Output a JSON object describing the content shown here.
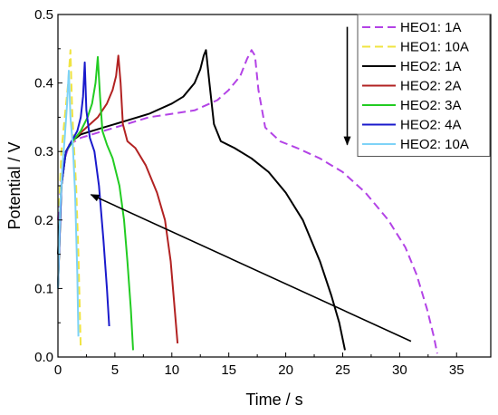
{
  "chart_data": {
    "type": "line",
    "title": "",
    "xlabel": "Time / s",
    "ylabel": "Potential / V",
    "xlim": [
      0,
      38
    ],
    "ylim": [
      0,
      0.5
    ],
    "xticks": [
      0,
      5,
      10,
      15,
      20,
      25,
      30,
      35
    ],
    "yticks": [
      0.0,
      0.1,
      0.2,
      0.3,
      0.4,
      0.5
    ],
    "xtick_labels": [
      "0",
      "5",
      "10",
      "15",
      "20",
      "25",
      "30",
      "35"
    ],
    "ytick_labels": [
      "0.0",
      "0.1",
      "0.2",
      "0.3",
      "0.4",
      "0.5"
    ],
    "grid": false,
    "legend_position": "top-right",
    "series": [
      {
        "name": "HEO1: 1A",
        "color": "#b343e6",
        "dash": "dashed",
        "x": [
          0,
          0.4,
          1,
          2,
          4,
          6,
          8,
          10,
          12,
          14,
          15,
          16,
          16.6,
          17,
          17.3,
          17.6,
          18.2,
          19.5,
          21,
          23,
          25,
          27,
          29,
          30.5,
          31.5,
          32.4,
          33,
          33.3
        ],
        "y": [
          0.2,
          0.28,
          0.31,
          0.32,
          0.33,
          0.34,
          0.35,
          0.355,
          0.36,
          0.375,
          0.39,
          0.41,
          0.435,
          0.448,
          0.44,
          0.39,
          0.335,
          0.315,
          0.305,
          0.29,
          0.27,
          0.24,
          0.2,
          0.16,
          0.12,
          0.07,
          0.03,
          0.005
        ]
      },
      {
        "name": "HEO1: 10A",
        "color": "#f0e442",
        "dash": "dashed",
        "x": [
          0.1,
          0.3,
          0.6,
          0.9,
          1.1,
          1.25,
          1.4,
          1.6,
          1.8,
          2.0
        ],
        "y": [
          0.22,
          0.3,
          0.35,
          0.4,
          0.448,
          0.36,
          0.31,
          0.25,
          0.15,
          0.01
        ]
      },
      {
        "name": "HEO2: 1A",
        "color": "#000000",
        "dash": "solid",
        "x": [
          0,
          0.3,
          0.7,
          1.2,
          2,
          4,
          6,
          8,
          10,
          11,
          12,
          12.5,
          12.8,
          13,
          13.3,
          13.7,
          14.3,
          15.5,
          17,
          18.5,
          20,
          21.5,
          23,
          24,
          24.7,
          25.2
        ],
        "y": [
          0.15,
          0.25,
          0.3,
          0.315,
          0.325,
          0.335,
          0.345,
          0.355,
          0.37,
          0.38,
          0.4,
          0.42,
          0.44,
          0.448,
          0.4,
          0.34,
          0.315,
          0.305,
          0.29,
          0.27,
          0.24,
          0.2,
          0.14,
          0.09,
          0.05,
          0.01
        ]
      },
      {
        "name": "HEO2: 2A",
        "color": "#b22222",
        "dash": "solid",
        "x": [
          0,
          0.3,
          0.7,
          1.5,
          2.5,
          3.5,
          4.3,
          4.8,
          5.1,
          5.3,
          5.5,
          5.7,
          6.1,
          6.8,
          7.7,
          8.7,
          9.4,
          9.9,
          10.2,
          10.5
        ],
        "y": [
          0.1,
          0.25,
          0.3,
          0.32,
          0.335,
          0.35,
          0.37,
          0.39,
          0.41,
          0.44,
          0.4,
          0.34,
          0.315,
          0.305,
          0.28,
          0.24,
          0.2,
          0.14,
          0.08,
          0.02
        ]
      },
      {
        "name": "HEO2: 3A",
        "color": "#22cc22",
        "dash": "solid",
        "x": [
          0,
          0.3,
          0.7,
          1.3,
          2,
          2.6,
          3.0,
          3.3,
          3.5,
          3.7,
          3.9,
          4.3,
          4.8,
          5.4,
          5.8,
          6.1,
          6.4,
          6.6
        ],
        "y": [
          0.1,
          0.25,
          0.3,
          0.315,
          0.33,
          0.35,
          0.37,
          0.4,
          0.438,
          0.38,
          0.33,
          0.31,
          0.29,
          0.25,
          0.2,
          0.14,
          0.07,
          0.01
        ]
      },
      {
        "name": "HEO2: 4A",
        "color": "#1a1acc",
        "dash": "solid",
        "x": [
          0,
          0.3,
          0.7,
          1.2,
          1.7,
          2.0,
          2.2,
          2.35,
          2.5,
          2.8,
          3.2,
          3.6,
          4.0,
          4.3,
          4.5
        ],
        "y": [
          0.1,
          0.25,
          0.3,
          0.315,
          0.33,
          0.35,
          0.38,
          0.43,
          0.36,
          0.32,
          0.3,
          0.25,
          0.17,
          0.1,
          0.045
        ]
      },
      {
        "name": "HEO2: 10A",
        "color": "#7ed3f7",
        "dash": "solid",
        "x": [
          0,
          0.2,
          0.4,
          0.6,
          0.8,
          0.95,
          1.1,
          1.3,
          1.5,
          1.7,
          1.8
        ],
        "y": [
          0.1,
          0.22,
          0.28,
          0.32,
          0.37,
          0.418,
          0.35,
          0.31,
          0.24,
          0.12,
          0.03
        ]
      }
    ],
    "annotations": [
      {
        "type": "arrow",
        "color": "#000000",
        "from": [
          31,
          0.023
        ],
        "to": [
          2.9,
          0.237
        ]
      },
      {
        "type": "arrow",
        "color": "#000000",
        "from": [
          25.4,
          0.482
        ],
        "to": [
          25.4,
          0.31
        ]
      }
    ]
  }
}
